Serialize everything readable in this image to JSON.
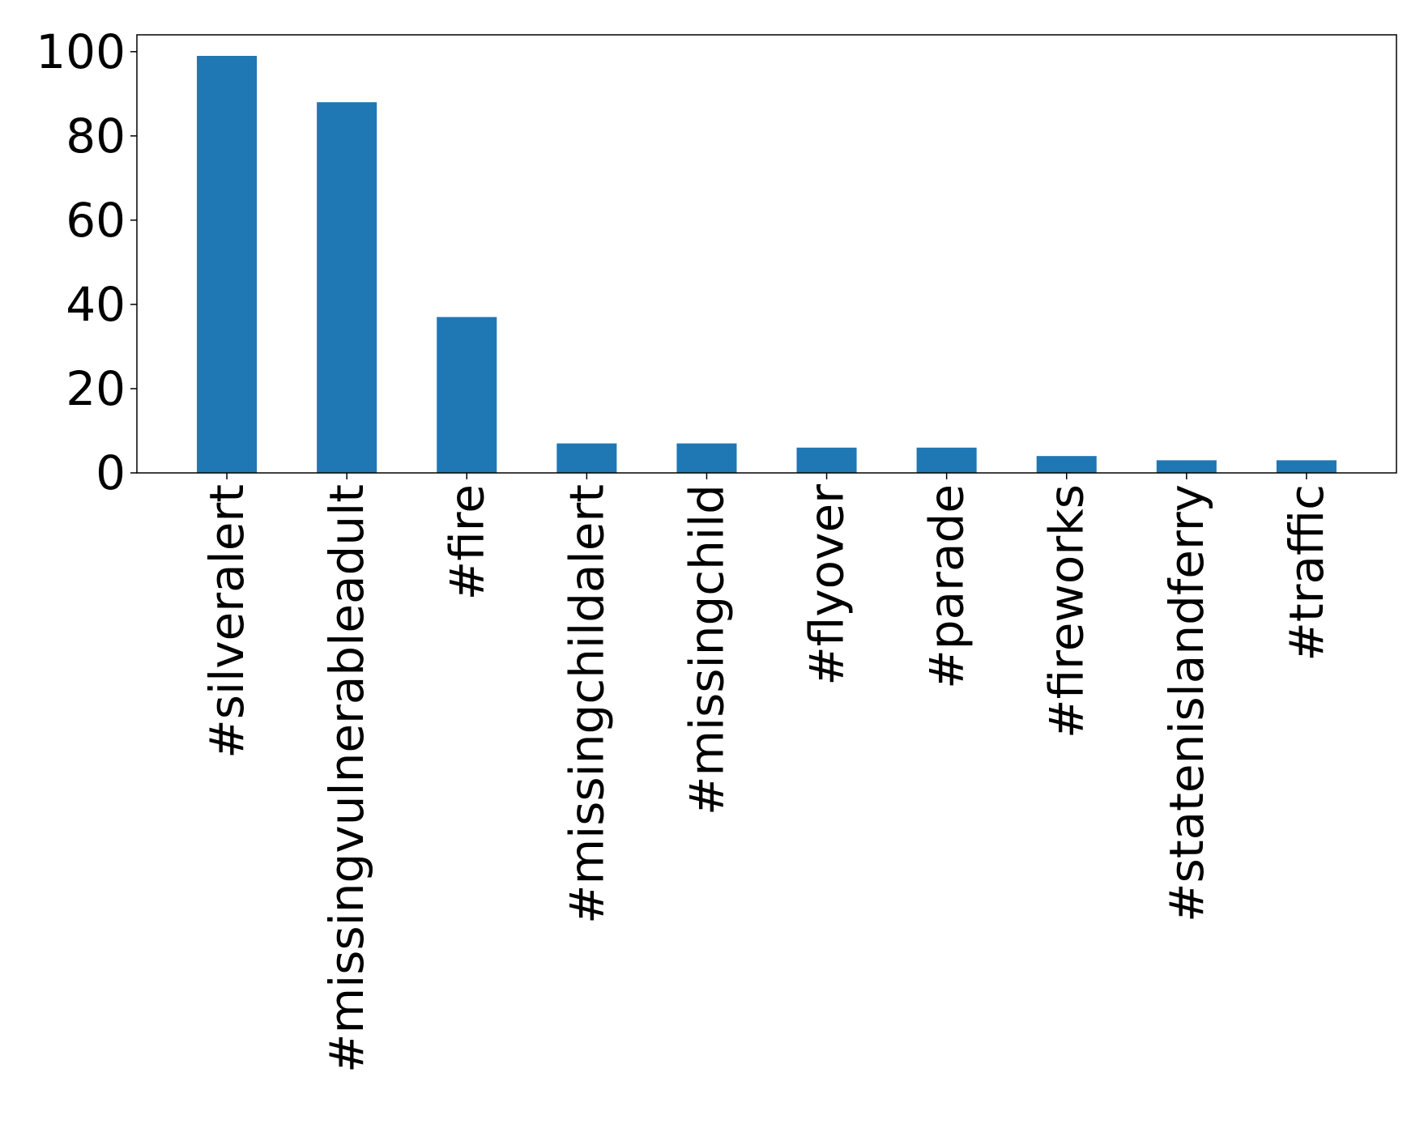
{
  "chart_data": {
    "type": "bar",
    "title": "",
    "xlabel": "",
    "ylabel": "",
    "categories": [
      "#silveralert",
      "#missingvulnerableadult",
      "#fire",
      "#missingchildalert",
      "#missingchild",
      "#flyover",
      "#parade",
      "#fireworks",
      "#statenislandferry",
      "#traffic"
    ],
    "values": [
      99,
      88,
      37,
      7,
      7,
      6,
      6,
      4,
      3,
      3
    ],
    "ylim": [
      0,
      104
    ],
    "yticks": [
      0,
      20,
      40,
      60,
      80,
      100
    ],
    "bar_color": "#1f77b4",
    "grid": false,
    "legend": "none"
  }
}
